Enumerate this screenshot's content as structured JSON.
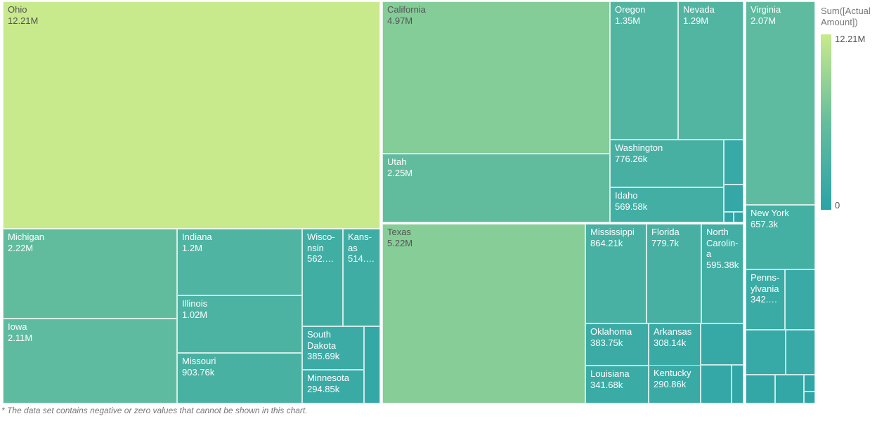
{
  "chart_data": {
    "type": "treemap",
    "colors": {
      "min": "#2aa3a8",
      "max": "#c8ea8c",
      "text_dark": "#555555",
      "text_light": "#ffffff"
    },
    "legend": {
      "title": "Sum([Actual\nAmount])",
      "max_label": "12.21M",
      "min_label": "0",
      "max_value": 12210000,
      "min_value": 0,
      "placement": "right"
    },
    "footnote": "* The data set contains negative or zero values that cannot be shown in this chart.",
    "cells": [
      {
        "name": "Ohio",
        "value": 12210000,
        "label": "12.21M"
      },
      {
        "name": "Michigan",
        "value": 2220000,
        "label": "2.22M"
      },
      {
        "name": "Iowa",
        "value": 2110000,
        "label": "2.11M"
      },
      {
        "name": "Indiana",
        "value": 1200000,
        "label": "1.2M"
      },
      {
        "name": "Illinois",
        "value": 1020000,
        "label": "1.02M"
      },
      {
        "name": "Missouri",
        "value": 903760,
        "label": "903.76k"
      },
      {
        "name": "Wisco-\nnsin",
        "value": 562000,
        "label": "562.…"
      },
      {
        "name": "Kans-\nas",
        "value": 514000,
        "label": "514.…"
      },
      {
        "name": "South\nDakota",
        "value": 385690,
        "label": "385.69k"
      },
      {
        "name": "Minnesota",
        "value": 294850,
        "label": "294.85k"
      },
      {
        "name": "",
        "value": 150000,
        "label": ""
      },
      {
        "name": "California",
        "value": 4970000,
        "label": "4.97M"
      },
      {
        "name": "Utah",
        "value": 2250000,
        "label": "2.25M"
      },
      {
        "name": "Oregon",
        "value": 1350000,
        "label": "1.35M"
      },
      {
        "name": "Nevada",
        "value": 1290000,
        "label": "1.29M"
      },
      {
        "name": "Washington",
        "value": 776260,
        "label": "776.26k"
      },
      {
        "name": "Idaho",
        "value": 569580,
        "label": "569.58k"
      },
      {
        "name": "",
        "value": 230000,
        "label": ""
      },
      {
        "name": "",
        "value": 140000,
        "label": ""
      },
      {
        "name": "",
        "value": 50000,
        "label": ""
      },
      {
        "name": "",
        "value": 40000,
        "label": ""
      },
      {
        "name": "Texas",
        "value": 5220000,
        "label": "5.22M"
      },
      {
        "name": "Mississippi",
        "value": 864210,
        "label": "864.21k"
      },
      {
        "name": "Florida",
        "value": 779700,
        "label": "779.7k"
      },
      {
        "name": "North\nCarolin-\na",
        "value": 595380,
        "label": "595.38k"
      },
      {
        "name": "Oklahoma",
        "value": 383750,
        "label": "383.75k"
      },
      {
        "name": "Arkansas",
        "value": 308140,
        "label": "308.14k"
      },
      {
        "name": "",
        "value": 200000,
        "label": ""
      },
      {
        "name": "Louisiana",
        "value": 341680,
        "label": "341.68k"
      },
      {
        "name": "Kentucky",
        "value": 290860,
        "label": "290.86k"
      },
      {
        "name": "",
        "value": 150000,
        "label": ""
      },
      {
        "name": "",
        "value": 60000,
        "label": ""
      },
      {
        "name": "Virginia",
        "value": 2070000,
        "label": "2.07M"
      },
      {
        "name": "New York",
        "value": 657300,
        "label": "657.3k"
      },
      {
        "name": "Penns-\nylvania",
        "value": 342000,
        "label": "342.…"
      },
      {
        "name": "",
        "value": 270000,
        "label": ""
      },
      {
        "name": "",
        "value": 220000,
        "label": ""
      },
      {
        "name": "",
        "value": 210000,
        "label": ""
      },
      {
        "name": "",
        "value": 130000,
        "label": ""
      },
      {
        "name": "",
        "value": 110000,
        "label": ""
      },
      {
        "name": "",
        "value": 60000,
        "label": ""
      },
      {
        "name": "",
        "value": 40000,
        "label": ""
      }
    ]
  }
}
